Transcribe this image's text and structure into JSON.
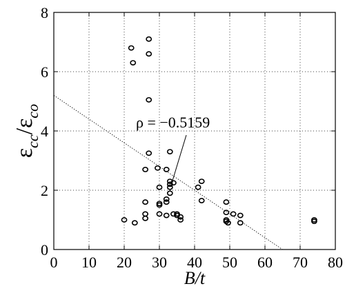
{
  "chart_data": {
    "type": "scatter",
    "title": "",
    "xlabel": "B/t",
    "ylabel": {
      "main": "ε",
      "sub1": "cc",
      "slash": "/",
      "main2": "ε",
      "sub2": "co"
    },
    "xlim": [
      0,
      80
    ],
    "ylim": [
      0,
      8
    ],
    "x_ticks": [
      "0",
      "10",
      "20",
      "30",
      "40",
      "50",
      "60",
      "70",
      "80"
    ],
    "y_ticks": [
      "0",
      "2",
      "4",
      "6",
      "8"
    ],
    "grid": true,
    "grid_style": "dotted",
    "series": [
      {
        "marker": "open-circle",
        "points": [
          [
            20,
            1.0
          ],
          [
            22,
            6.8
          ],
          [
            22.5,
            6.3
          ],
          [
            23,
            0.9
          ],
          [
            26,
            2.7
          ],
          [
            26,
            1.6
          ],
          [
            26,
            1.2
          ],
          [
            26,
            1.05
          ],
          [
            27,
            7.1
          ],
          [
            27,
            6.6
          ],
          [
            27,
            5.05
          ],
          [
            27,
            3.25
          ],
          [
            29.5,
            2.75
          ],
          [
            30,
            2.1
          ],
          [
            30,
            1.55
          ],
          [
            30,
            1.5
          ],
          [
            30,
            1.2
          ],
          [
            32,
            2.7
          ],
          [
            32,
            1.7
          ],
          [
            32,
            1.6
          ],
          [
            32,
            1.15
          ],
          [
            33,
            3.3
          ],
          [
            33,
            2.3
          ],
          [
            33,
            2.2
          ],
          [
            33,
            2.1
          ],
          [
            33,
            1.9
          ],
          [
            34,
            2.25
          ],
          [
            34,
            1.2
          ],
          [
            35,
            1.15
          ],
          [
            35,
            1.2
          ],
          [
            36,
            1.1
          ],
          [
            36,
            1.0
          ],
          [
            41,
            2.1
          ],
          [
            42,
            2.3
          ],
          [
            42,
            1.65
          ],
          [
            49,
            1.6
          ],
          [
            49,
            1.25
          ],
          [
            49,
            1.0
          ],
          [
            49,
            0.95
          ],
          [
            49.5,
            0.9
          ],
          [
            51,
            1.2
          ],
          [
            53,
            1.15
          ],
          [
            53,
            0.9
          ],
          [
            74,
            1.0
          ],
          [
            74,
            0.95
          ]
        ]
      }
    ],
    "trend_line": {
      "style": "dotted",
      "points": [
        [
          0,
          5.2
        ],
        [
          65,
          0
        ]
      ]
    },
    "annotation": {
      "text": "ρ = −0.5159",
      "arrow_to": [
        33,
        2.3
      ]
    }
  }
}
